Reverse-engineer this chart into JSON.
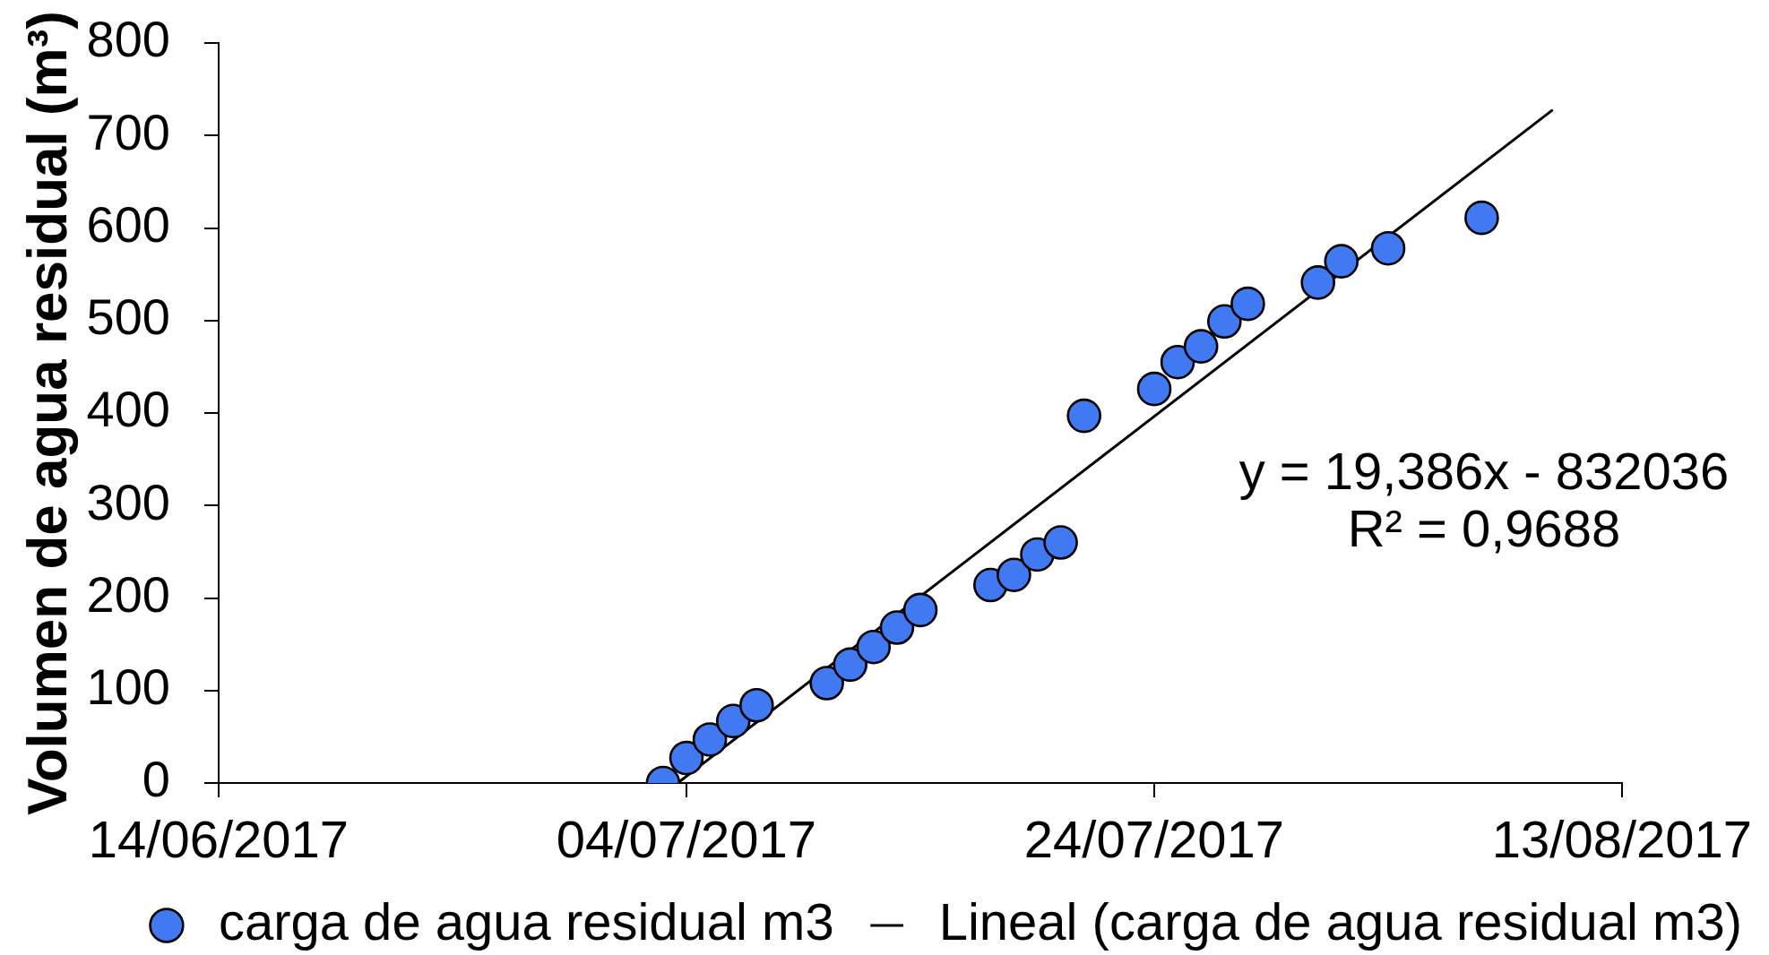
{
  "chart_data": {
    "type": "scatter",
    "ylabel": "Volumen de agua residual (m³)",
    "x": [
      "2017-07-03",
      "2017-07-04",
      "2017-07-05",
      "2017-07-06",
      "2017-07-07",
      "2017-07-10",
      "2017-07-11",
      "2017-07-12",
      "2017-07-13",
      "2017-07-14",
      "2017-07-17",
      "2017-07-18",
      "2017-07-19",
      "2017-07-20",
      "2017-07-21",
      "2017-07-24",
      "2017-07-25",
      "2017-07-26",
      "2017-07-27",
      "2017-07-28",
      "2017-07-31",
      "2017-08-01",
      "2017-08-03",
      "2017-08-07"
    ],
    "series": [
      {
        "name": "carga de agua residual m3",
        "color": "#4179f2",
        "marker": "circle",
        "values": [
          0,
          27,
          47,
          67,
          84,
          108,
          128,
          147,
          168,
          187,
          214,
          225,
          247,
          260,
          397,
          426,
          455,
          472,
          499,
          518,
          541,
          564,
          578,
          611
        ]
      },
      {
        "name": "Lineal (carga de agua residual m3)",
        "type": "line",
        "color": "#000000",
        "marker": "none",
        "line_style": "solid",
        "x": [
          "2017-07-03T15:00",
          "2017-08-10"
        ],
        "values": [
          0,
          727
        ]
      }
    ],
    "xlim": [
      "2017-06-14",
      "2017-08-13"
    ],
    "xticks": [
      {
        "value": "2017-06-14",
        "label": "14/06/2017"
      },
      {
        "value": "2017-07-04",
        "label": "04/07/2017"
      },
      {
        "value": "2017-07-24",
        "label": "24/07/2017"
      },
      {
        "value": "2017-08-13",
        "label": "13/08/2017"
      }
    ],
    "ylim": [
      0,
      800
    ],
    "yticks": [
      0,
      100,
      200,
      300,
      400,
      500,
      600,
      700,
      800
    ],
    "annotations": [
      "y = 19,386x - 832036",
      "R² = 0,9688"
    ],
    "legend": "bottom",
    "grid": false
  }
}
